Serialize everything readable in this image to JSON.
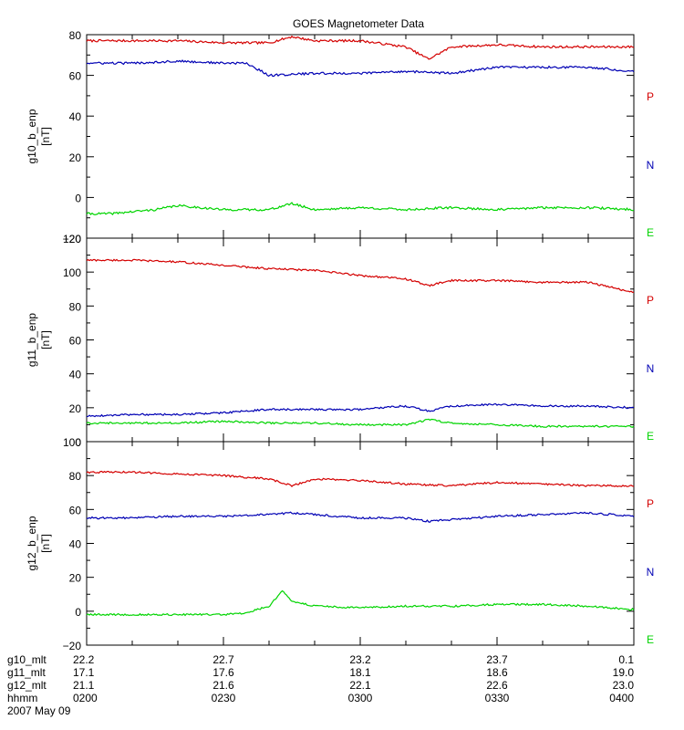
{
  "title": "GOES Magnetometer Data",
  "colors": {
    "P": "#d40000",
    "N": "#0000b4",
    "E": "#00d400",
    "axis": "#000000"
  },
  "x_range": [
    "0200",
    "0400"
  ],
  "x_tick_labels": [
    "0200",
    "0230",
    "0300",
    "0330",
    "0400"
  ],
  "footer": {
    "rows": [
      {
        "name": "g10_mlt",
        "values": [
          "22.2",
          "22.7",
          "23.2",
          "23.7",
          "0.1"
        ]
      },
      {
        "name": "g11_mlt",
        "values": [
          "17.1",
          "17.6",
          "18.1",
          "18.6",
          "19.0"
        ]
      },
      {
        "name": "g12_mlt",
        "values": [
          "21.1",
          "21.6",
          "22.1",
          "22.6",
          "23.0"
        ]
      },
      {
        "name": "hhmm",
        "values": [
          "0200",
          "0230",
          "0300",
          "0330",
          "0400"
        ]
      }
    ],
    "date": "2007 May 09"
  },
  "chart_data": [
    {
      "type": "line",
      "ylabel": "g10_b_enp",
      "unit": "[nT]",
      "ylim": [
        -20,
        80
      ],
      "y_ticks": [
        -20,
        0,
        20,
        40,
        60,
        80
      ],
      "y_tick_labels": [
        "−20",
        "0",
        "20",
        "40",
        "60",
        "80"
      ],
      "series": [
        {
          "name": "P",
          "x": [
            "0200",
            "0210",
            "0220",
            "0230",
            "0240",
            "0245",
            "0250",
            "0300",
            "0310",
            "0315",
            "0320",
            "0330",
            "0340",
            "0350",
            "0400"
          ],
          "y": [
            77,
            77,
            77,
            76,
            76,
            79,
            77,
            77,
            74,
            68,
            74,
            75,
            74,
            74,
            74
          ]
        },
        {
          "name": "N",
          "x": [
            "0200",
            "0210",
            "0220",
            "0230",
            "0235",
            "0240",
            "0250",
            "0300",
            "0310",
            "0320",
            "0330",
            "0340",
            "0350",
            "0400"
          ],
          "y": [
            66,
            66,
            67,
            66,
            66,
            60,
            61,
            61,
            62,
            61,
            64,
            64,
            64,
            62
          ]
        },
        {
          "name": "E",
          "x": [
            "0200",
            "0205",
            "0215",
            "0220",
            "0230",
            "0240",
            "0245",
            "0250",
            "0300",
            "0310",
            "0320",
            "0330",
            "0340",
            "0350",
            "0400"
          ],
          "y": [
            -8,
            -8,
            -6,
            -4,
            -6,
            -6,
            -3,
            -6,
            -5,
            -6,
            -5,
            -6,
            -5,
            -5,
            -6
          ]
        }
      ]
    },
    {
      "type": "line",
      "ylabel": "g11_b_enp",
      "unit": "[nT]",
      "ylim": [
        0,
        120
      ],
      "y_ticks": [
        0,
        20,
        40,
        60,
        80,
        100,
        120
      ],
      "y_tick_labels": [
        "0",
        "20",
        "40",
        "60",
        "80",
        "100",
        "120"
      ],
      "series": [
        {
          "name": "P",
          "x": [
            "0200",
            "0210",
            "0220",
            "0230",
            "0240",
            "0250",
            "0300",
            "0310",
            "0315",
            "0320",
            "0330",
            "0340",
            "0350",
            "0400"
          ],
          "y": [
            107,
            107,
            106,
            104,
            102,
            101,
            98,
            96,
            92,
            95,
            95,
            94,
            94,
            88
          ]
        },
        {
          "name": "N",
          "x": [
            "0200",
            "0210",
            "0220",
            "0230",
            "0240",
            "0250",
            "0300",
            "0310",
            "0315",
            "0320",
            "0330",
            "0340",
            "0350",
            "0400"
          ],
          "y": [
            15,
            16,
            16,
            17,
            19,
            19,
            19,
            21,
            18,
            21,
            22,
            21,
            21,
            20
          ]
        },
        {
          "name": "E",
          "x": [
            "0200",
            "0210",
            "0220",
            "0230",
            "0240",
            "0250",
            "0300",
            "0310",
            "0315",
            "0320",
            "0330",
            "0340",
            "0350",
            "0400"
          ],
          "y": [
            11,
            11,
            11,
            12,
            11,
            11,
            10,
            10,
            13,
            11,
            10,
            9,
            9,
            9
          ]
        }
      ]
    },
    {
      "type": "line",
      "ylabel": "g12_b_enp",
      "unit": "[nT]",
      "ylim": [
        -20,
        100
      ],
      "y_ticks": [
        -20,
        0,
        20,
        40,
        60,
        80,
        100
      ],
      "y_tick_labels": [
        "−20",
        "0",
        "20",
        "40",
        "60",
        "80",
        "100"
      ],
      "series": [
        {
          "name": "P",
          "x": [
            "0200",
            "0210",
            "0220",
            "0230",
            "0240",
            "0245",
            "0250",
            "0300",
            "0310",
            "0320",
            "0330",
            "0340",
            "0350",
            "0400"
          ],
          "y": [
            82,
            82,
            81,
            80,
            78,
            74,
            78,
            77,
            75,
            74,
            76,
            75,
            74,
            74
          ]
        },
        {
          "name": "N",
          "x": [
            "0200",
            "0210",
            "0220",
            "0230",
            "0240",
            "0245",
            "0250",
            "0300",
            "0310",
            "0315",
            "0320",
            "0330",
            "0340",
            "0350",
            "0400"
          ],
          "y": [
            55,
            55,
            56,
            56,
            57,
            58,
            57,
            55,
            55,
            53,
            54,
            56,
            57,
            58,
            56
          ]
        },
        {
          "name": "E",
          "x": [
            "0200",
            "0210",
            "0220",
            "0230",
            "0235",
            "0240",
            "0243",
            "0245",
            "0250",
            "0300",
            "0310",
            "0320",
            "0330",
            "0340",
            "0350",
            "0400"
          ],
          "y": [
            -2,
            -2,
            -2,
            -2,
            -1,
            3,
            12,
            6,
            3,
            2,
            3,
            3,
            4,
            4,
            3,
            1
          ]
        }
      ]
    }
  ]
}
